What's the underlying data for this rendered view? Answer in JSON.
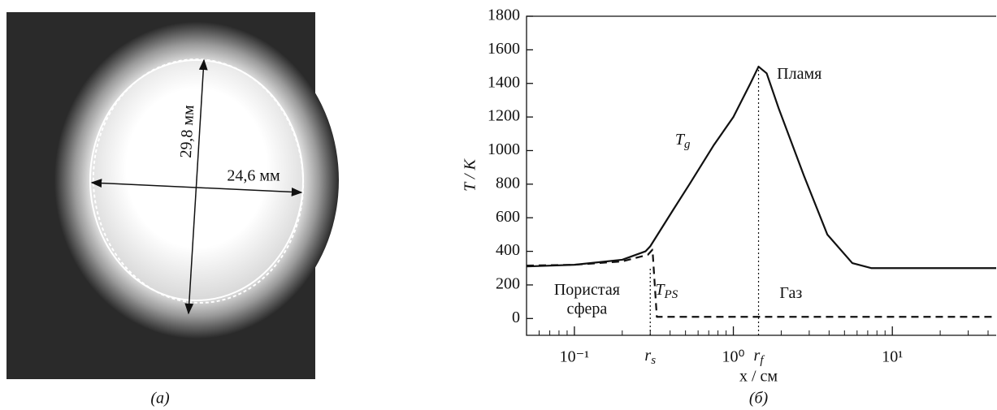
{
  "photo": {
    "labels": [
      "29,8 мм",
      "24,6 мм"
    ],
    "caption": "(а)"
  },
  "chart_data": {
    "type": "line",
    "x_scale": "log",
    "ylim": [
      -100,
      1800
    ],
    "yticks": [
      0,
      200,
      400,
      600,
      800,
      1000,
      1200,
      1400,
      1600,
      1800
    ],
    "xlim": [
      0.05,
      45
    ],
    "xticks": [
      {
        "value": 0.1,
        "label": "10⁻¹"
      },
      {
        "value": 1,
        "label": "10⁰"
      },
      {
        "value": 10,
        "label": "10¹"
      }
    ],
    "minor_xticks": [
      0.06,
      0.07,
      0.08,
      0.09,
      0.2,
      0.3,
      0.4,
      0.5,
      0.6,
      0.7,
      0.8,
      0.9,
      2,
      3,
      4,
      5,
      6,
      7,
      8,
      9,
      20,
      30,
      40
    ],
    "xlabel": "x / см",
    "ylabel": "T / K",
    "caption": "(б)",
    "series": [
      {
        "color": "#111111",
        "dash": "solid",
        "x": [
          0.05,
          0.1,
          0.2,
          0.28,
          0.3,
          0.42,
          0.53,
          0.75,
          1.0,
          1.28,
          1.44,
          1.62,
          1.93,
          2.78,
          3.9,
          5.6,
          7.4,
          45
        ],
        "values": [
          310,
          320,
          350,
          400,
          430,
          650,
          800,
          1030,
          1200,
          1400,
          1500,
          1460,
          1250,
          850,
          500,
          330,
          300,
          300
        ]
      },
      {
        "color": "#111111",
        "dash": "dashed",
        "x": [
          0.05,
          0.1,
          0.2,
          0.29,
          0.31,
          0.33,
          45
        ],
        "values": [
          315,
          320,
          340,
          380,
          410,
          10,
          10
        ]
      }
    ],
    "vlines": [
      {
        "x": 0.3,
        "top": 300,
        "label": "r",
        "sub": "s"
      },
      {
        "x": 1.44,
        "top": 1500,
        "label": "r",
        "sub": "f"
      }
    ],
    "annotations": [
      {
        "text": "Пламя",
        "x": 2.6,
        "y": 1450
      },
      {
        "text": "T",
        "sub": "g",
        "x": 0.48,
        "y": 1060
      },
      {
        "text": "Пористая",
        "x": 0.12,
        "y": 165
      },
      {
        "text": "сфера",
        "x": 0.12,
        "y": 50
      },
      {
        "text": "T",
        "sub": "PS",
        "x": 0.38,
        "y": 165
      },
      {
        "text": "Газ",
        "x": 2.3,
        "y": 145
      }
    ]
  }
}
